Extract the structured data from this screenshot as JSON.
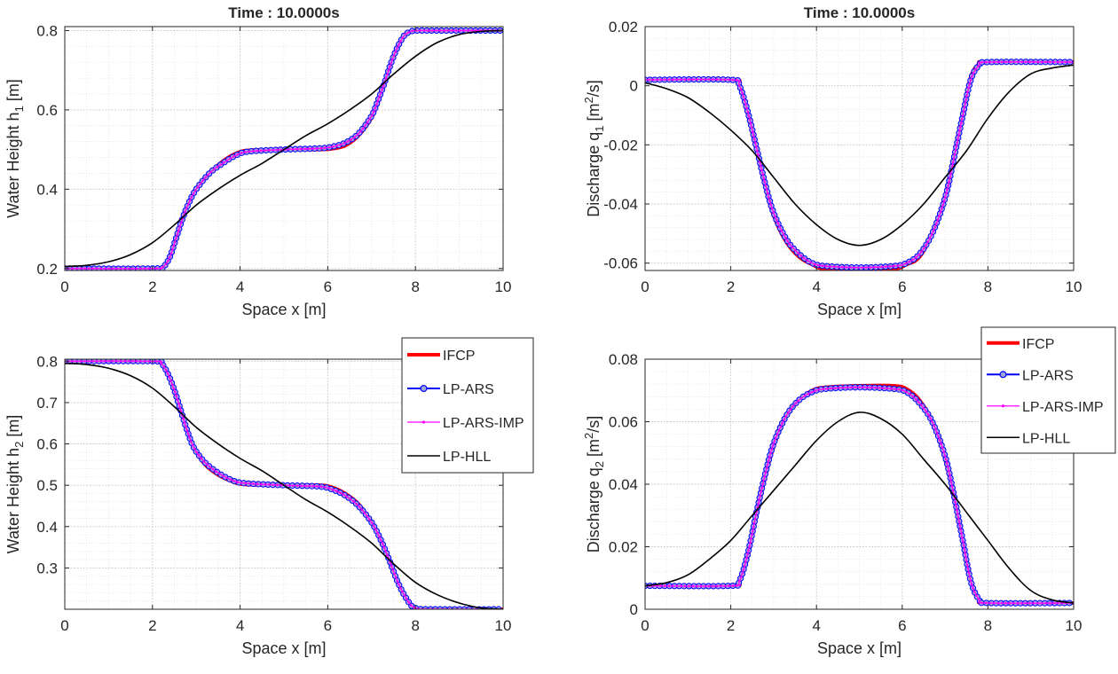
{
  "figure": {
    "background": "#ffffff"
  },
  "style": {
    "colors": {
      "IFCP": "#ff0000",
      "LP-ARS": "#0000ff",
      "LP-ARS-IMP": "#ff00ff",
      "LP-HLL": "#000000"
    },
    "grid": "on (major and minor, dotted)",
    "marker_fill": "#9fa9d8"
  },
  "legend": {
    "entries": [
      "IFCP",
      "LP-ARS",
      "LP-ARS-IMP",
      "LP-HLL"
    ],
    "placement": [
      "right of bottom-left panel (top-right)",
      "right of bottom-right panel (top-right)"
    ]
  },
  "chart_data": [
    {
      "id": "h1",
      "type": "line",
      "title": "Time : 10.0000s",
      "xlabel": "Space x [m]",
      "ylabel": {
        "main": "Water Height h",
        "sub": "1",
        "unit": " [m]"
      },
      "xlim": [
        0,
        10
      ],
      "ylim": [
        0.195,
        0.81
      ],
      "xticks": [
        0,
        2,
        4,
        6,
        8,
        10
      ],
      "yticks": [
        0.2,
        0.4,
        0.6,
        0.8
      ],
      "ytick_labels": [
        "0.2",
        "0.4",
        "0.6",
        "0.8"
      ],
      "series": [
        {
          "name": "IFCP",
          "x": [
            0,
            2,
            2.25,
            2.4,
            2.55,
            2.7,
            2.85,
            3.0,
            3.3,
            3.6,
            3.9,
            4.2,
            5.0,
            5.8,
            6.1,
            6.4,
            6.7,
            7.0,
            7.15,
            7.3,
            7.45,
            7.6,
            7.75,
            7.9,
            8.05,
            8.5,
            10
          ],
          "y": [
            0.2,
            0.2,
            0.205,
            0.23,
            0.28,
            0.33,
            0.37,
            0.4,
            0.44,
            0.47,
            0.49,
            0.498,
            0.5,
            0.5,
            0.502,
            0.51,
            0.535,
            0.58,
            0.62,
            0.67,
            0.72,
            0.76,
            0.79,
            0.798,
            0.8,
            0.8,
            0.8
          ]
        },
        {
          "name": "LP-ARS",
          "x": [
            0,
            2,
            2.25,
            2.4,
            2.55,
            2.7,
            2.85,
            3.0,
            3.3,
            3.6,
            3.9,
            4.2,
            5.0,
            5.8,
            6.1,
            6.4,
            6.7,
            7.0,
            7.15,
            7.3,
            7.45,
            7.6,
            7.75,
            7.9,
            8.05,
            8.5,
            10
          ],
          "y": [
            0.2,
            0.2,
            0.205,
            0.23,
            0.28,
            0.33,
            0.37,
            0.4,
            0.44,
            0.465,
            0.485,
            0.495,
            0.5,
            0.503,
            0.507,
            0.517,
            0.54,
            0.585,
            0.625,
            0.67,
            0.72,
            0.76,
            0.788,
            0.798,
            0.8,
            0.8,
            0.8
          ]
        },
        {
          "name": "LP-ARS-IMP",
          "x": [
            0,
            2,
            2.25,
            2.4,
            2.55,
            2.7,
            2.85,
            3.0,
            3.3,
            3.6,
            3.9,
            4.2,
            5.0,
            5.8,
            6.1,
            6.4,
            6.7,
            7.0,
            7.15,
            7.3,
            7.45,
            7.6,
            7.75,
            7.9,
            8.05,
            8.5,
            10
          ],
          "y": [
            0.2,
            0.2,
            0.205,
            0.23,
            0.28,
            0.33,
            0.37,
            0.4,
            0.44,
            0.465,
            0.485,
            0.495,
            0.5,
            0.503,
            0.507,
            0.517,
            0.54,
            0.585,
            0.625,
            0.67,
            0.72,
            0.76,
            0.788,
            0.798,
            0.8,
            0.8,
            0.8
          ]
        },
        {
          "name": "LP-HLL",
          "x": [
            0,
            0.5,
            1,
            1.5,
            2,
            2.5,
            3,
            3.5,
            4,
            4.5,
            5,
            5.5,
            6,
            6.5,
            7,
            7.5,
            8,
            8.5,
            9,
            9.5,
            10
          ],
          "y": [
            0.205,
            0.208,
            0.217,
            0.235,
            0.265,
            0.31,
            0.36,
            0.4,
            0.435,
            0.465,
            0.5,
            0.535,
            0.565,
            0.6,
            0.64,
            0.69,
            0.735,
            0.77,
            0.79,
            0.798,
            0.8
          ]
        }
      ]
    },
    {
      "id": "q1",
      "type": "line",
      "title": "Time : 10.0000s",
      "xlabel": "Space x [m]",
      "ylabel": {
        "main": "Discharge q",
        "sub": "1",
        "unit": " [m",
        "sup": "2",
        "unit_end": "/s]"
      },
      "xlim": [
        0,
        10
      ],
      "ylim": [
        -0.0625,
        0.02
      ],
      "xticks": [
        0,
        2,
        4,
        6,
        8,
        10
      ],
      "yticks": [
        -0.06,
        -0.04,
        -0.02,
        0,
        0.02
      ],
      "ytick_labels": [
        "-0.06",
        "-0.04",
        "-0.02",
        "0",
        "0.02"
      ],
      "series": [
        {
          "name": "IFCP",
          "x": [
            0,
            2,
            2.2,
            2.4,
            2.6,
            2.8,
            3.0,
            3.3,
            3.6,
            3.9,
            4.2,
            5.0,
            5.8,
            6.1,
            6.4,
            6.7,
            7.0,
            7.2,
            7.4,
            7.6,
            7.8,
            8.0,
            10
          ],
          "y": [
            0.002,
            0.002,
            0.0,
            -0.01,
            -0.022,
            -0.034,
            -0.044,
            -0.053,
            -0.058,
            -0.0605,
            -0.062,
            -0.062,
            -0.062,
            -0.0605,
            -0.058,
            -0.05,
            -0.037,
            -0.024,
            -0.01,
            0.003,
            0.0075,
            0.008,
            0.008
          ]
        },
        {
          "name": "LP-ARS",
          "x": [
            0,
            2,
            2.2,
            2.4,
            2.6,
            2.8,
            3.0,
            3.3,
            3.6,
            3.9,
            4.2,
            5.0,
            5.8,
            6.1,
            6.4,
            6.7,
            7.0,
            7.2,
            7.4,
            7.6,
            7.8,
            8.0,
            10
          ],
          "y": [
            0.002,
            0.002,
            0.0,
            -0.009,
            -0.021,
            -0.033,
            -0.043,
            -0.052,
            -0.057,
            -0.06,
            -0.061,
            -0.0615,
            -0.061,
            -0.06,
            -0.057,
            -0.05,
            -0.038,
            -0.025,
            -0.011,
            0.002,
            0.007,
            0.008,
            0.008
          ]
        },
        {
          "name": "LP-ARS-IMP",
          "x": [
            0,
            2,
            2.2,
            2.4,
            2.6,
            2.8,
            3.0,
            3.3,
            3.6,
            3.9,
            4.2,
            5.0,
            5.8,
            6.1,
            6.4,
            6.7,
            7.0,
            7.2,
            7.4,
            7.6,
            7.8,
            8.0,
            10
          ],
          "y": [
            0.002,
            0.002,
            0.0,
            -0.009,
            -0.021,
            -0.033,
            -0.043,
            -0.052,
            -0.057,
            -0.06,
            -0.061,
            -0.0615,
            -0.061,
            -0.06,
            -0.057,
            -0.05,
            -0.038,
            -0.025,
            -0.011,
            0.002,
            0.007,
            0.008,
            0.008
          ]
        },
        {
          "name": "LP-HLL",
          "x": [
            0,
            0.5,
            1,
            1.5,
            2,
            2.5,
            3,
            3.5,
            4,
            4.5,
            5,
            5.5,
            6,
            6.5,
            7,
            7.5,
            8,
            8.5,
            9,
            9.5,
            10
          ],
          "y": [
            0.001,
            -0.001,
            -0.004,
            -0.009,
            -0.015,
            -0.022,
            -0.031,
            -0.04,
            -0.047,
            -0.052,
            -0.054,
            -0.052,
            -0.047,
            -0.04,
            -0.031,
            -0.022,
            -0.011,
            -0.002,
            0.004,
            0.006,
            0.007
          ]
        }
      ]
    },
    {
      "id": "h2",
      "type": "line",
      "title": "",
      "xlabel": "Space x [m]",
      "ylabel": {
        "main": "Water Height h",
        "sub": "2",
        "unit": " [m]"
      },
      "xlim": [
        0,
        10
      ],
      "ylim": [
        0.2,
        0.805
      ],
      "xticks": [
        0,
        2,
        4,
        6,
        8,
        10
      ],
      "yticks": [
        0.3,
        0.4,
        0.5,
        0.6,
        0.7,
        0.8
      ],
      "ytick_labels": [
        "0.3",
        "0.4",
        "0.5",
        "0.6",
        "0.7",
        "0.8"
      ],
      "series": [
        {
          "name": "IFCP",
          "x": [
            0,
            2,
            2.2,
            2.35,
            2.5,
            2.65,
            2.8,
            2.95,
            3.2,
            3.5,
            3.8,
            4.1,
            5.0,
            5.8,
            6.1,
            6.4,
            6.7,
            7.0,
            7.2,
            7.4,
            7.6,
            7.8,
            8.0,
            8.5,
            10
          ],
          "y": [
            0.8,
            0.8,
            0.795,
            0.77,
            0.73,
            0.68,
            0.63,
            0.59,
            0.55,
            0.525,
            0.51,
            0.502,
            0.5,
            0.5,
            0.495,
            0.48,
            0.455,
            0.41,
            0.37,
            0.32,
            0.265,
            0.225,
            0.2,
            0.2,
            0.2
          ]
        },
        {
          "name": "LP-ARS",
          "x": [
            0,
            2,
            2.2,
            2.35,
            2.5,
            2.65,
            2.8,
            2.95,
            3.2,
            3.5,
            3.8,
            4.1,
            5.0,
            5.8,
            6.1,
            6.4,
            6.7,
            7.0,
            7.2,
            7.4,
            7.6,
            7.8,
            8.0,
            8.5,
            10
          ],
          "y": [
            0.8,
            0.8,
            0.795,
            0.77,
            0.73,
            0.68,
            0.63,
            0.59,
            0.555,
            0.53,
            0.513,
            0.505,
            0.5,
            0.497,
            0.49,
            0.475,
            0.45,
            0.41,
            0.37,
            0.32,
            0.265,
            0.225,
            0.203,
            0.2,
            0.2
          ]
        },
        {
          "name": "LP-ARS-IMP",
          "x": [
            0,
            2,
            2.2,
            2.35,
            2.5,
            2.65,
            2.8,
            2.95,
            3.2,
            3.5,
            3.8,
            4.1,
            5.0,
            5.8,
            6.1,
            6.4,
            6.7,
            7.0,
            7.2,
            7.4,
            7.6,
            7.8,
            8.0,
            8.5,
            10
          ],
          "y": [
            0.8,
            0.8,
            0.795,
            0.77,
            0.73,
            0.68,
            0.63,
            0.59,
            0.555,
            0.53,
            0.513,
            0.505,
            0.5,
            0.497,
            0.49,
            0.475,
            0.45,
            0.41,
            0.37,
            0.32,
            0.265,
            0.225,
            0.203,
            0.2,
            0.2
          ]
        },
        {
          "name": "LP-HLL",
          "x": [
            0,
            0.5,
            1,
            1.5,
            2,
            2.5,
            3,
            3.5,
            4,
            4.5,
            5,
            5.5,
            6,
            6.5,
            7,
            7.5,
            8,
            8.5,
            9,
            9.5,
            10
          ],
          "y": [
            0.795,
            0.792,
            0.783,
            0.765,
            0.735,
            0.69,
            0.64,
            0.6,
            0.565,
            0.535,
            0.5,
            0.465,
            0.435,
            0.4,
            0.36,
            0.31,
            0.265,
            0.235,
            0.215,
            0.203,
            0.2
          ]
        }
      ]
    },
    {
      "id": "q2",
      "type": "line",
      "title": "",
      "xlabel": "Space x [m]",
      "ylabel": {
        "main": "Discharge q",
        "sub": "2",
        "unit": " [m",
        "sup": "2",
        "unit_end": "/s]"
      },
      "xlim": [
        0,
        10
      ],
      "ylim": [
        0,
        0.08
      ],
      "xticks": [
        0,
        2,
        4,
        6,
        8,
        10
      ],
      "yticks": [
        0,
        0.02,
        0.04,
        0.06,
        0.08
      ],
      "ytick_labels": [
        "0",
        "0.02",
        "0.04",
        "0.06",
        "0.08"
      ],
      "series": [
        {
          "name": "IFCP",
          "x": [
            0,
            2,
            2.2,
            2.4,
            2.6,
            2.8,
            3.0,
            3.3,
            3.6,
            3.9,
            4.2,
            5.0,
            5.8,
            6.1,
            6.4,
            6.7,
            7.0,
            7.2,
            7.4,
            7.6,
            7.8,
            8.0,
            10
          ],
          "y": [
            0.0075,
            0.0075,
            0.009,
            0.017,
            0.03,
            0.042,
            0.052,
            0.062,
            0.067,
            0.07,
            0.071,
            0.0715,
            0.0715,
            0.0705,
            0.067,
            0.06,
            0.048,
            0.036,
            0.022,
            0.009,
            0.003,
            0.002,
            0.002
          ]
        },
        {
          "name": "LP-ARS",
          "x": [
            0,
            2,
            2.2,
            2.4,
            2.6,
            2.8,
            3.0,
            3.3,
            3.6,
            3.9,
            4.2,
            5.0,
            5.8,
            6.1,
            6.4,
            6.7,
            7.0,
            7.2,
            7.4,
            7.6,
            7.8,
            8.0,
            10
          ],
          "y": [
            0.0075,
            0.0075,
            0.009,
            0.018,
            0.031,
            0.043,
            0.053,
            0.062,
            0.067,
            0.0695,
            0.0705,
            0.071,
            0.0705,
            0.0695,
            0.066,
            0.06,
            0.049,
            0.037,
            0.023,
            0.009,
            0.003,
            0.002,
            0.002
          ]
        },
        {
          "name": "LP-ARS-IMP",
          "x": [
            0,
            2,
            2.2,
            2.4,
            2.6,
            2.8,
            3.0,
            3.3,
            3.6,
            3.9,
            4.2,
            5.0,
            5.8,
            6.1,
            6.4,
            6.7,
            7.0,
            7.2,
            7.4,
            7.6,
            7.8,
            8.0,
            10
          ],
          "y": [
            0.0075,
            0.0075,
            0.009,
            0.018,
            0.031,
            0.043,
            0.053,
            0.062,
            0.067,
            0.0695,
            0.0705,
            0.071,
            0.0705,
            0.0695,
            0.066,
            0.06,
            0.049,
            0.037,
            0.023,
            0.009,
            0.003,
            0.002,
            0.002
          ]
        },
        {
          "name": "LP-HLL",
          "x": [
            0,
            0.5,
            1,
            1.5,
            2,
            2.5,
            3,
            3.5,
            4,
            4.5,
            5,
            5.5,
            6,
            6.5,
            7,
            7.5,
            8,
            8.5,
            9,
            9.5,
            10
          ],
          "y": [
            0.0075,
            0.0085,
            0.011,
            0.016,
            0.022,
            0.03,
            0.038,
            0.046,
            0.054,
            0.06,
            0.063,
            0.061,
            0.056,
            0.048,
            0.04,
            0.031,
            0.022,
            0.013,
            0.006,
            0.003,
            0.002
          ]
        }
      ]
    }
  ]
}
